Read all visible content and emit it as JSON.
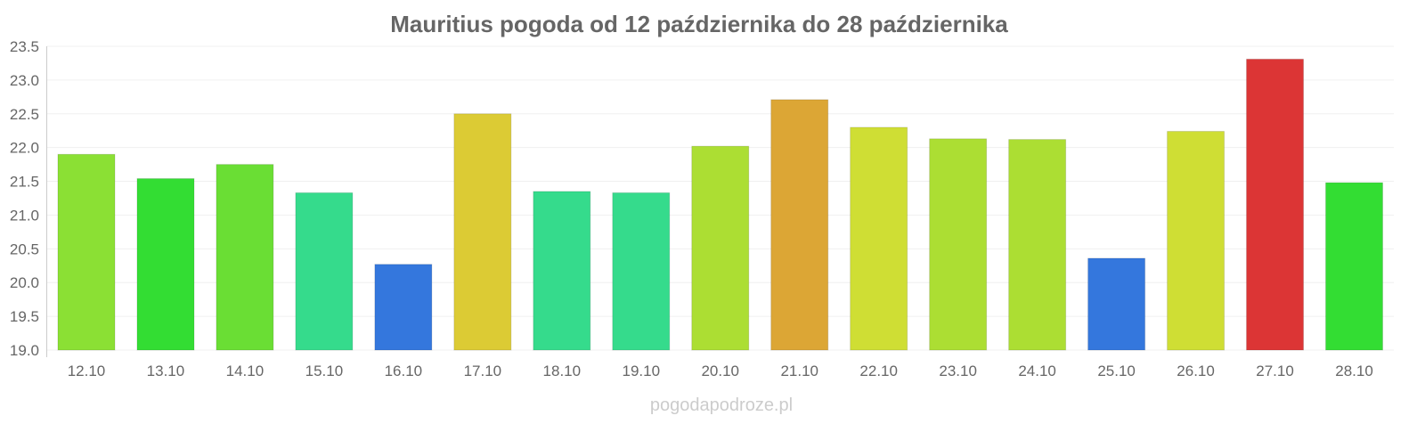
{
  "chart_data": {
    "type": "bar",
    "title": "Mauritius pogoda od 12 października do 28 października",
    "xlabel": "",
    "ylabel": "",
    "ylim": [
      19.0,
      23.5
    ],
    "yticks": [
      "19.0",
      "19.5",
      "20.0",
      "20.5",
      "21.0",
      "21.5",
      "22.0",
      "22.5",
      "23.0",
      "23.5"
    ],
    "grid": true,
    "categories": [
      "12.10",
      "13.10",
      "14.10",
      "15.10",
      "16.10",
      "17.10",
      "18.10",
      "19.10",
      "20.10",
      "21.10",
      "22.10",
      "23.10",
      "24.10",
      "25.10",
      "26.10",
      "27.10",
      "28.10"
    ],
    "values": [
      21.9,
      21.54,
      21.75,
      21.33,
      20.27,
      22.5,
      21.35,
      21.33,
      22.02,
      22.71,
      22.3,
      22.13,
      22.12,
      20.36,
      22.24,
      23.31,
      21.48
    ],
    "colors": [
      "#8be034",
      "#33dd33",
      "#6ade34",
      "#35db8c",
      "#3477dd",
      "#dccb34",
      "#35db8c",
      "#35db8c",
      "#acde33",
      "#dca635",
      "#cfde34",
      "#acde33",
      "#acde33",
      "#3477dd",
      "#cfde34",
      "#dc3535",
      "#33dd33"
    ]
  },
  "watermark": "pogodapodroze.pl"
}
